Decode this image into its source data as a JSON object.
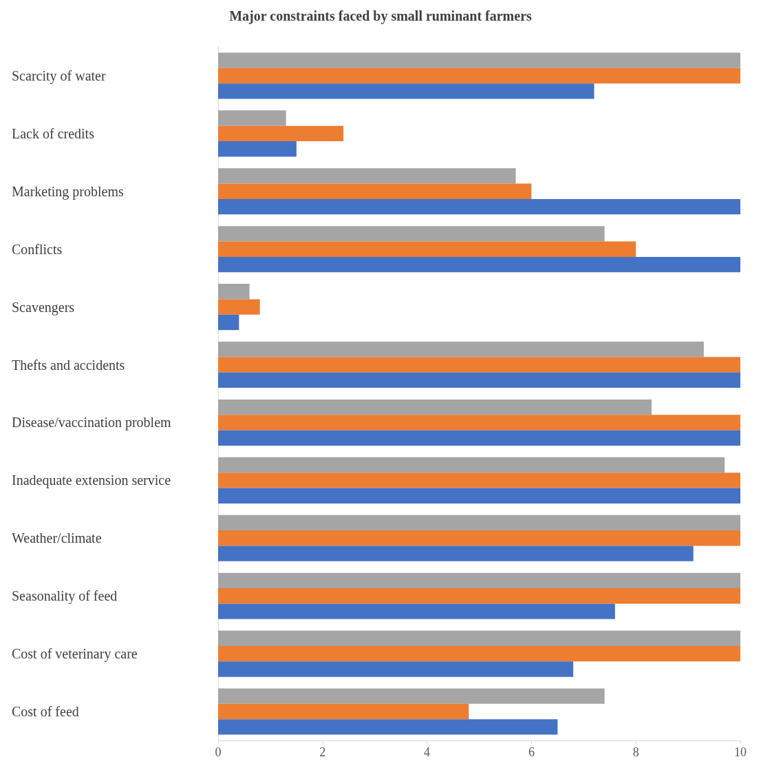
{
  "chart_data": {
    "type": "bar",
    "orientation": "horizontal",
    "title": "Major constraints faced by small ruminant farmers",
    "categories": [
      "Scarcity of water",
      "Lack of credits",
      "Marketing problems",
      "Conflicts",
      "Scavengers",
      "Thefts and accidents",
      "Disease/vaccination problem",
      "Inadequate extension service",
      "Weather/climate",
      "Seasonality of feed",
      "Cost of veterinary care",
      "Cost of feed"
    ],
    "series": [
      {
        "color": "#a5a5a5",
        "values": [
          10,
          1.3,
          5.7,
          7.4,
          0.6,
          9.3,
          8.3,
          9.7,
          10,
          10,
          10,
          7.4
        ]
      },
      {
        "color": "#ed7d31",
        "values": [
          10,
          2.4,
          6.0,
          8.0,
          0.8,
          10,
          10,
          10,
          10,
          10,
          10,
          4.8
        ]
      },
      {
        "color": "#4472c4",
        "values": [
          7.2,
          1.5,
          10,
          10,
          0.4,
          10,
          10,
          10,
          9.1,
          7.6,
          6.8,
          6.5
        ]
      }
    ],
    "xlim": [
      0,
      10
    ],
    "xticks": [
      0,
      2,
      4,
      6,
      8,
      10
    ],
    "grid": false
  }
}
